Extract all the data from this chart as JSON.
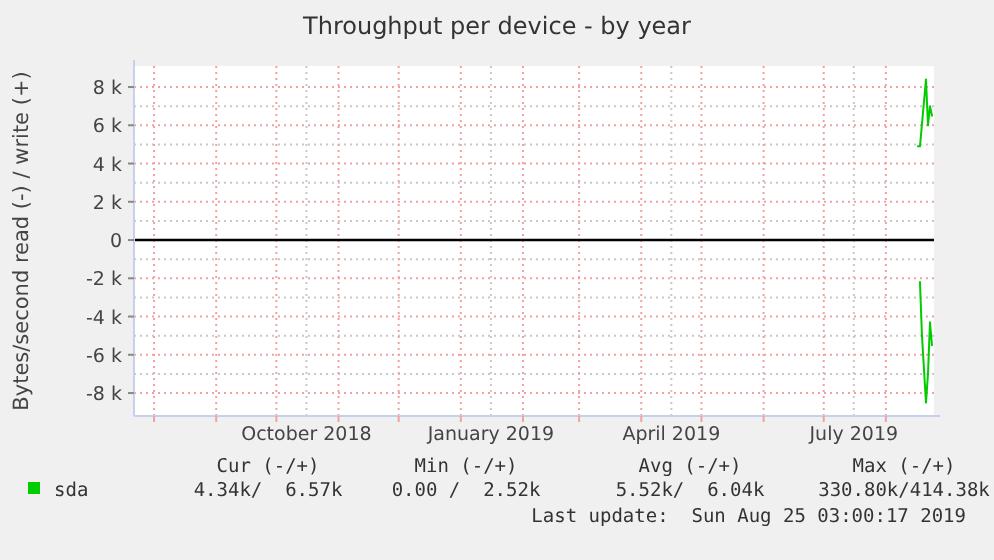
{
  "chart_data": {
    "type": "line",
    "title": "Throughput per device - by year",
    "ylabel": "Bytes/second read (-) / write (+)",
    "xlim": [
      "2018-07-22",
      "2019-08-25"
    ],
    "ylim": [
      -9200,
      9100
    ],
    "xticks": [
      {
        "value": "2018-08-01",
        "label": null
      },
      {
        "value": "2018-09-01",
        "label": null
      },
      {
        "value": "2018-10-01",
        "label": null
      },
      {
        "value": "2018-10-16",
        "label": "October 2018"
      },
      {
        "value": "2018-11-01",
        "label": null
      },
      {
        "value": "2018-12-01",
        "label": null
      },
      {
        "value": "2019-01-01",
        "label": null
      },
      {
        "value": "2019-01-16",
        "label": "January 2019"
      },
      {
        "value": "2019-02-01",
        "label": null
      },
      {
        "value": "2019-03-01",
        "label": null
      },
      {
        "value": "2019-04-01",
        "label": null
      },
      {
        "value": "2019-04-16",
        "label": "April 2019"
      },
      {
        "value": "2019-05-01",
        "label": null
      },
      {
        "value": "2019-06-01",
        "label": null
      },
      {
        "value": "2019-07-01",
        "label": null
      },
      {
        "value": "2019-07-16",
        "label": "July 2019"
      },
      {
        "value": "2019-08-01",
        "label": null
      }
    ],
    "yticks": [
      {
        "value": 8000,
        "label": "8 k"
      },
      {
        "value": 6000,
        "label": "6 k"
      },
      {
        "value": 4000,
        "label": "4 k"
      },
      {
        "value": 2000,
        "label": "2 k"
      },
      0,
      {
        "value": -2000,
        "label": "-2 k"
      },
      {
        "value": -4000,
        "label": "-4 k"
      },
      {
        "value": -6000,
        "label": "-6 k"
      },
      {
        "value": -8000,
        "label": "-8 k"
      }
    ],
    "grid": true,
    "legend": "bottom",
    "ref_lines": [
      {
        "axis": "y",
        "value": 0,
        "color": "#000000"
      }
    ],
    "series": [
      {
        "name": "sda",
        "color": "#00cc00",
        "x": [
          "2019-08-17",
          "2019-08-18",
          "2019-08-21",
          "2019-08-22",
          "2019-08-23",
          "2019-08-24"
        ],
        "values": [
          4900,
          4900,
          8400,
          6000,
          7000,
          6500
        ]
      },
      {
        "color": "#00cc00",
        "x": [
          "2019-08-18",
          "2019-08-19",
          "2019-08-21",
          "2019-08-22",
          "2019-08-23",
          "2019-08-24"
        ],
        "values": [
          -2200,
          -5000,
          -8500,
          -7000,
          -4300,
          -5500
        ]
      }
    ],
    "annotations": [
      "Cur (-/+)",
      "Min (-/+)",
      "Avg (-/+)",
      "Max (-/+)",
      "4.34k/  6.57k",
      "0.00 /  2.52k",
      "5.52k/  6.04k",
      "330.80k/414.38k",
      "Last update:  Sun Aug 25 03:00:17 2019"
    ]
  }
}
